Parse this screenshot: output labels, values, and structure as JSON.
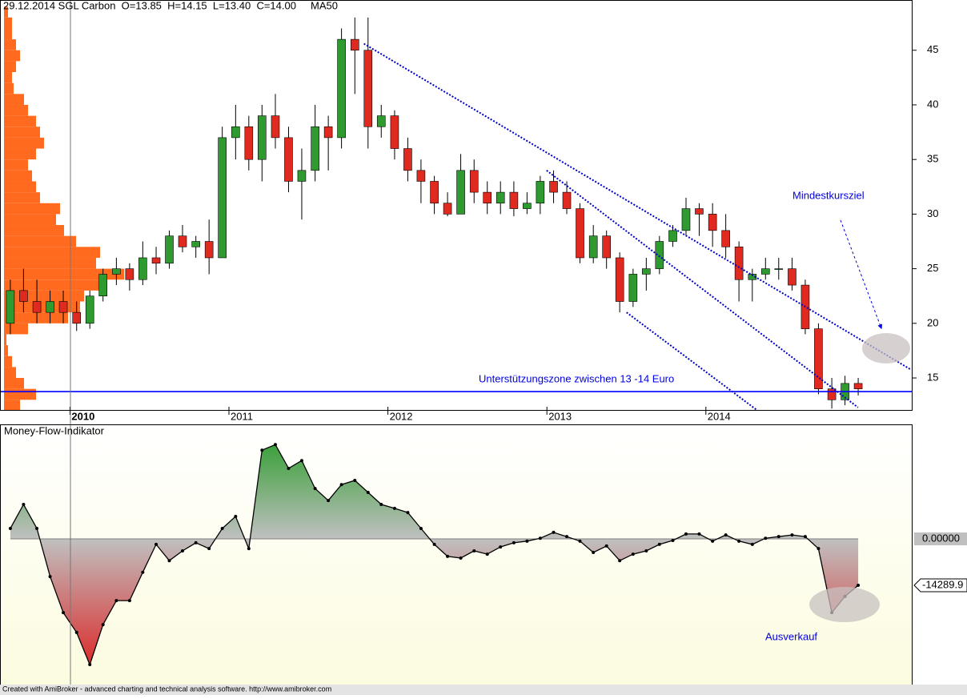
{
  "chart_data": [
    {
      "type": "candlestick",
      "title": "29.12.2014 SGL Carbon  O=13.85  H=14.15  L=13.40  C=14.00     MA50",
      "x": [
        2009.625,
        2009.708,
        2009.792,
        2009.875,
        2009.958,
        2010.042,
        2010.125,
        2010.208,
        2010.292,
        2010.375,
        2010.458,
        2010.542,
        2010.625,
        2010.708,
        2010.792,
        2010.875,
        2010.958,
        2011.042,
        2011.125,
        2011.208,
        2011.292,
        2011.375,
        2011.458,
        2011.542,
        2011.625,
        2011.708,
        2011.792,
        2011.875,
        2011.958,
        2012.042,
        2012.125,
        2012.208,
        2012.292,
        2012.375,
        2012.458,
        2012.542,
        2012.625,
        2012.708,
        2012.792,
        2012.875,
        2012.958,
        2013.042,
        2013.125,
        2013.208,
        2013.292,
        2013.375,
        2013.458,
        2013.542,
        2013.625,
        2013.708,
        2013.792,
        2013.875,
        2013.958,
        2014.042,
        2014.125,
        2014.208,
        2014.292,
        2014.375,
        2014.458,
        2014.542,
        2014.625,
        2014.708,
        2014.792,
        2014.875,
        2014.958
      ],
      "open": [
        20,
        23,
        22,
        21,
        22,
        21,
        20,
        22.5,
        24.5,
        25,
        24,
        26,
        25.5,
        28,
        27,
        27.5,
        26,
        37,
        38,
        35,
        39,
        37,
        33,
        34,
        38,
        37,
        46,
        45,
        38,
        39,
        36,
        34,
        33,
        31,
        30,
        34,
        32,
        31,
        32,
        30.5,
        31,
        33,
        32,
        30.5,
        26,
        28,
        26,
        22,
        24.5,
        25,
        27.5,
        28.5,
        30.5,
        30,
        28.5,
        27,
        24,
        24.5,
        25,
        25,
        23.5,
        19.5,
        14,
        13,
        14.5
      ],
      "high": [
        24,
        25,
        24,
        23,
        23,
        22,
        23,
        25,
        26,
        25.5,
        27.5,
        27,
        28.5,
        29,
        28,
        29.5,
        38,
        40,
        39,
        40,
        41,
        38,
        36,
        40,
        39,
        47,
        48,
        48,
        40,
        39.5,
        37,
        35,
        33.5,
        32,
        35.5,
        35,
        33,
        33,
        33,
        32,
        33.5,
        34,
        33,
        31,
        29,
        28.5,
        26.5,
        25,
        26,
        28,
        29,
        31.5,
        31,
        31,
        30,
        27.5,
        25,
        26,
        26,
        26,
        24,
        20,
        15,
        15.2,
        15
      ],
      "low": [
        19,
        21,
        20,
        20,
        20,
        19.3,
        19.5,
        22,
        23.5,
        23,
        23.5,
        24.5,
        25,
        26.5,
        26,
        24.5,
        26,
        35,
        34,
        33,
        36,
        32,
        29.5,
        33,
        34,
        36,
        41,
        36,
        37,
        35,
        33,
        31,
        30,
        29.8,
        30,
        31,
        30,
        30,
        29.8,
        30,
        30,
        31,
        30,
        25.5,
        25.5,
        25,
        21,
        21.5,
        23,
        24.5,
        27,
        28,
        28,
        27,
        26,
        22,
        22,
        24,
        24,
        23,
        19,
        13.5,
        12.2,
        12.5,
        13.4
      ],
      "close": [
        23,
        22,
        21,
        22,
        21,
        20,
        22.5,
        24.5,
        25,
        24,
        26,
        25.5,
        28,
        27,
        27.5,
        26,
        37,
        38,
        35,
        39,
        37,
        33,
        34,
        38,
        37,
        46,
        45,
        38,
        39,
        36,
        34,
        33,
        31,
        30,
        34,
        32,
        31,
        32,
        30.5,
        31,
        33,
        32,
        30.5,
        26,
        28,
        26,
        22,
        24.5,
        25,
        27.5,
        28.5,
        30.5,
        30,
        28.5,
        27,
        24,
        24.5,
        25,
        25,
        23.5,
        19.5,
        14,
        13,
        14.5,
        14
      ],
      "up_color": "#2f9a2f",
      "down_color": "#e02a20",
      "xlim": [
        2009.56,
        2015.3
      ],
      "xticks": [
        2010,
        2011,
        2012,
        2013,
        2014
      ],
      "ylim": [
        12.07,
        49.6
      ],
      "yticks": [
        15,
        20,
        25,
        30,
        35,
        40,
        45
      ],
      "volume_profile": {
        "color": "#ff6a1f",
        "bins": [
          12,
          13,
          14,
          15,
          16,
          17,
          18,
          19,
          20,
          21,
          22,
          23,
          24,
          25,
          26,
          27,
          28,
          29,
          30,
          31,
          32,
          33,
          34,
          35,
          36,
          37,
          38,
          39,
          40,
          41,
          42,
          43,
          44,
          45,
          46,
          47,
          48,
          49
        ],
        "values": [
          20,
          40,
          25,
          15,
          10,
          5,
          3,
          30,
          80,
          95,
          100,
          120,
          150,
          115,
          120,
          90,
          75,
          65,
          70,
          45,
          40,
          35,
          30,
          40,
          50,
          45,
          40,
          30,
          25,
          12,
          10,
          15,
          20,
          15,
          10,
          10,
          5
        ]
      },
      "support_level": 13.75,
      "support_color": "#0000ff",
      "trendlines": [
        [
          2011.849,
          45.6,
          2015.285,
          15.8
        ],
        [
          2012.998,
          34,
          2014.957,
          12.3
        ],
        [
          2013.501,
          21,
          2014.317,
          12.1
        ]
      ],
      "trend_color": "#0000c8",
      "annotations": [
        "Unterstützungszone zwischen 13 -14 Euro",
        "Mindestkursziel"
      ]
    },
    {
      "type": "area",
      "title": "Money-Flow-Indikator",
      "values": [
        3200,
        10600,
        3200,
        -11600,
        -22700,
        -28800,
        -38700,
        -26400,
        -19000,
        -19000,
        -10300,
        -1700,
        -6700,
        -3700,
        -1200,
        -3000,
        3200,
        6900,
        -3000,
        27300,
        29000,
        21700,
        24100,
        15500,
        11800,
        16700,
        18000,
        14300,
        10600,
        9400,
        8100,
        3200,
        -1700,
        -5400,
        -5900,
        -3700,
        -4700,
        -2500,
        -1200,
        -700,
        200,
        2000,
        700,
        -700,
        -4200,
        -2200,
        -6700,
        -4700,
        -3700,
        -1700,
        -500,
        1500,
        1500,
        -700,
        1200,
        -700,
        -1700,
        200,
        700,
        1200,
        700,
        -3000,
        -22700,
        -17700,
        -14289.9
      ],
      "ylim": [
        -44845,
        35237
      ],
      "yticks": [
        {
          "value": 0,
          "label": "0.00000"
        }
      ],
      "positive_color": "#1f9a1f",
      "negative_color": "#e01515",
      "annotations": [
        "Ausverkauf"
      ]
    },
    {
      "type": "footer",
      "text": "Created with AmiBroker - advanced charting and technical analysis software. http://www.amibroker.com"
    }
  ]
}
